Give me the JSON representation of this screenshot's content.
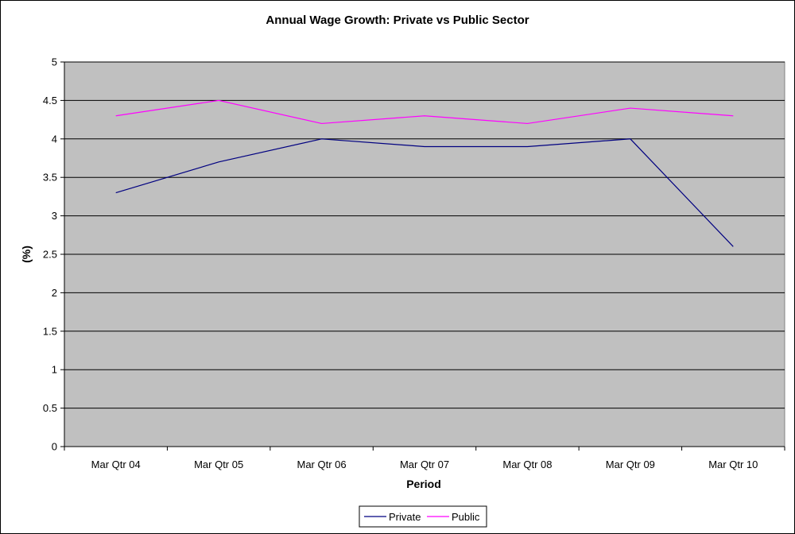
{
  "chart_data": {
    "type": "line",
    "title": "Annual Wage Growth: Private vs Public Sector",
    "xlabel": "Period",
    "ylabel": "(%)",
    "categories": [
      "Mar Qtr 04",
      "Mar Qtr 05",
      "Mar Qtr 06",
      "Mar Qtr 07",
      "Mar Qtr 08",
      "Mar Qtr 09",
      "Mar Qtr 10"
    ],
    "ylim": [
      0,
      5
    ],
    "yticks": [
      "0",
      "0.5",
      "1",
      "1.5",
      "2",
      "2.5",
      "3",
      "3.5",
      "4",
      "4.5",
      "5"
    ],
    "grid": true,
    "legend_position": "bottom",
    "plot_background": "#c0c0c0",
    "series": [
      {
        "name": "Private",
        "color": "#000080",
        "values": [
          3.3,
          3.7,
          4.0,
          3.9,
          3.9,
          4.0,
          2.6
        ]
      },
      {
        "name": "Public",
        "color": "#ff00ff",
        "values": [
          4.3,
          4.5,
          4.2,
          4.3,
          4.2,
          4.4,
          4.3
        ]
      }
    ]
  }
}
